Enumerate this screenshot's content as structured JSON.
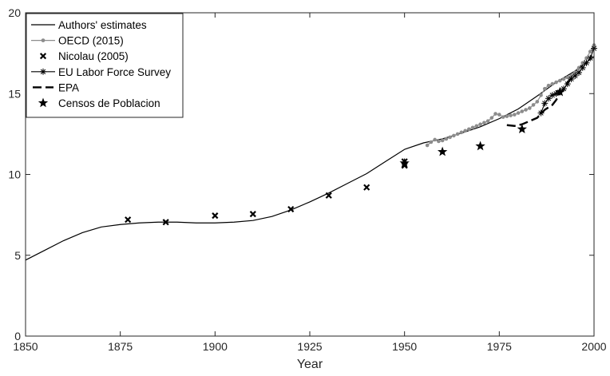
{
  "chart_data": {
    "type": "line",
    "title": "",
    "xlabel": "Year",
    "ylabel": "",
    "xlim": [
      1850,
      2000
    ],
    "ylim": [
      0,
      20
    ],
    "xticks": [
      1850,
      1875,
      1900,
      1925,
      1950,
      1975,
      2000
    ],
    "yticks": [
      0,
      5,
      10,
      15,
      20
    ],
    "grid": false,
    "legend_position": "top-left",
    "series": [
      {
        "name": "Authors' estimates",
        "style": "line",
        "color": "#000000",
        "x": [
          1850,
          1855,
          1860,
          1865,
          1870,
          1875,
          1880,
          1885,
          1890,
          1895,
          1900,
          1905,
          1910,
          1915,
          1920,
          1925,
          1930,
          1935,
          1940,
          1945,
          1950,
          1955,
          1960,
          1965,
          1970,
          1975,
          1980,
          1985,
          1990,
          1995,
          2000
        ],
        "y": [
          4.7,
          5.3,
          5.9,
          6.4,
          6.75,
          6.9,
          7.0,
          7.05,
          7.05,
          7.0,
          7.0,
          7.05,
          7.15,
          7.4,
          7.8,
          8.3,
          8.85,
          9.45,
          10.05,
          10.8,
          11.55,
          11.95,
          12.2,
          12.55,
          12.95,
          13.45,
          14.05,
          14.85,
          15.7,
          16.4,
          17.3
        ]
      },
      {
        "name": "OECD (2015)",
        "style": "line-dot",
        "color": "#8c8c8c",
        "x": [
          1956,
          1957,
          1958,
          1959,
          1960,
          1961,
          1962,
          1963,
          1964,
          1965,
          1966,
          1967,
          1968,
          1969,
          1970,
          1971,
          1972,
          1973,
          1974,
          1975,
          1976,
          1977,
          1978,
          1979,
          1980,
          1981,
          1982,
          1983,
          1984,
          1985,
          1986,
          1987,
          1988,
          1989,
          1990,
          1991,
          1992,
          1993,
          1994,
          1995,
          1996,
          1997,
          1998,
          1999,
          2000
        ],
        "y": [
          11.8,
          12.0,
          12.15,
          12.05,
          12.1,
          12.2,
          12.3,
          12.4,
          12.5,
          12.6,
          12.7,
          12.8,
          12.9,
          13.0,
          13.1,
          13.2,
          13.3,
          13.5,
          13.75,
          13.7,
          13.55,
          13.6,
          13.65,
          13.7,
          13.8,
          13.9,
          14.0,
          14.1,
          14.3,
          14.5,
          14.9,
          15.3,
          15.5,
          15.6,
          15.7,
          15.8,
          15.9,
          16.0,
          16.1,
          16.3,
          16.6,
          16.9,
          17.2,
          17.6,
          18.0
        ]
      },
      {
        "name": "Nicolau (2005)",
        "style": "x-marker",
        "color": "#000000",
        "x": [
          1877,
          1887,
          1900,
          1910,
          1920,
          1930,
          1940,
          1950,
          1950
        ],
        "y": [
          7.2,
          7.05,
          7.45,
          7.55,
          7.85,
          8.7,
          9.2,
          10.55,
          10.8
        ]
      },
      {
        "name": "EU Labor Force Survey",
        "style": "line-star",
        "color": "#000000",
        "x": [
          1986,
          1987,
          1988,
          1989,
          1990,
          1991,
          1992,
          1993,
          1994,
          1995,
          1996,
          1997,
          1998,
          1999,
          2000
        ],
        "y": [
          13.8,
          14.4,
          14.7,
          14.9,
          15.0,
          15.1,
          15.3,
          15.6,
          15.9,
          16.1,
          16.3,
          16.6,
          16.9,
          17.2,
          17.8
        ]
      },
      {
        "name": "EPA",
        "style": "dashed",
        "color": "#000000",
        "x": [
          1977,
          1979,
          1981,
          1983,
          1985,
          1987,
          1989,
          1990,
          1991,
          1992,
          1993,
          1994,
          1995
        ],
        "y": [
          13.05,
          13.0,
          13.1,
          13.3,
          13.5,
          14.0,
          14.3,
          14.6,
          15.0,
          15.3,
          15.7,
          15.95,
          16.0
        ]
      },
      {
        "name": "Censos de Poblacion",
        "style": "star-marker",
        "color": "#000000",
        "x": [
          1950,
          1960,
          1970,
          1981,
          1991
        ],
        "y": [
          10.7,
          11.4,
          11.75,
          12.8,
          15.1
        ]
      }
    ]
  }
}
